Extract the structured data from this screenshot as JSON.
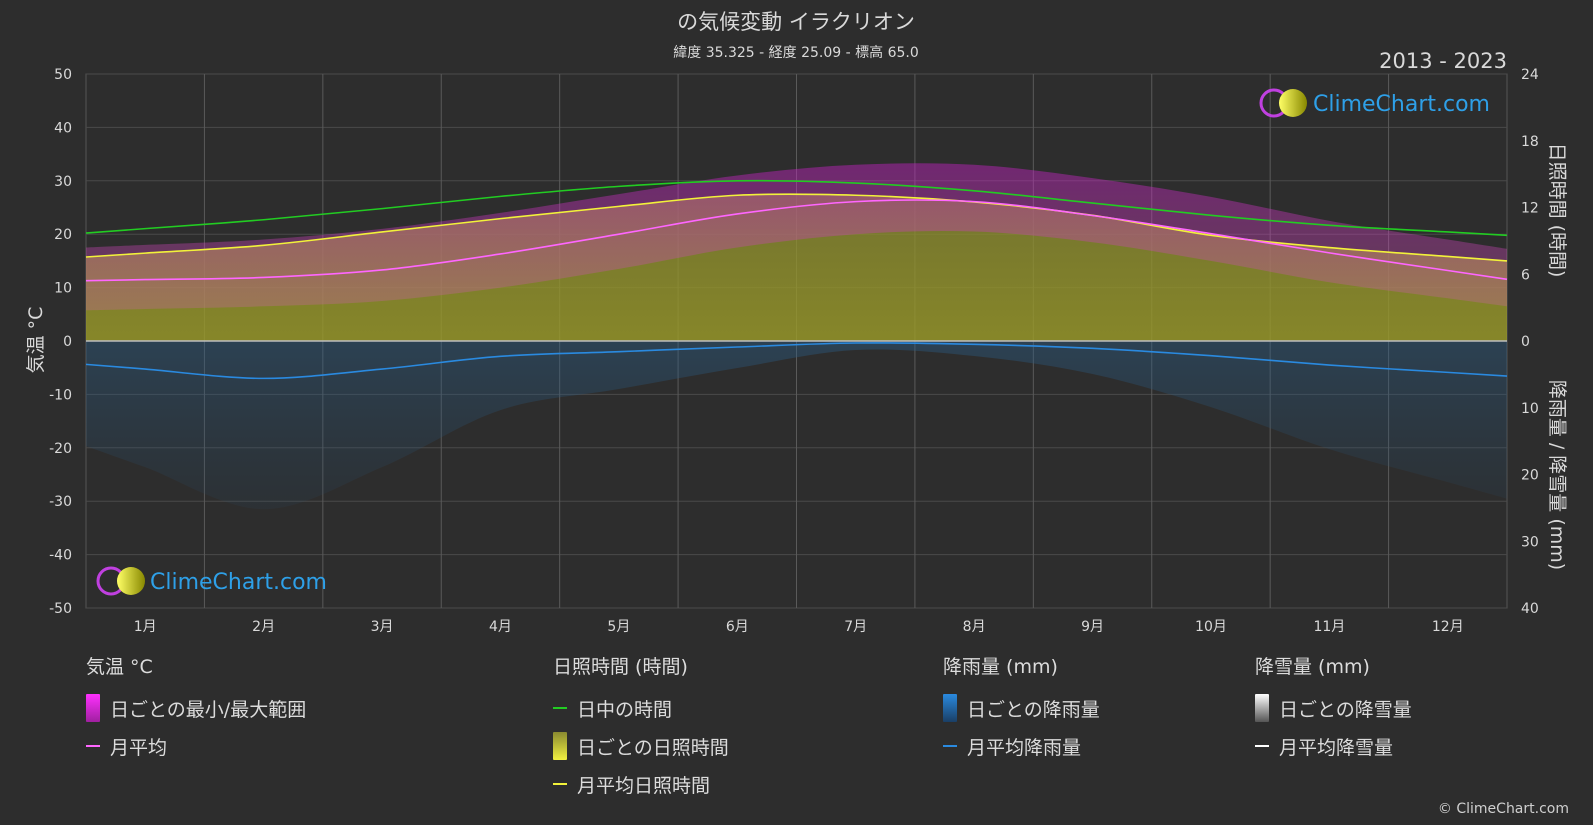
{
  "title": "の気候変動 イラクリオン",
  "subtitle": "緯度 35.325 - 経度 25.09 - 標高 65.0",
  "period": "2013 - 2023",
  "logo_text": "ClimeChart.com",
  "copyright": "© ClimeChart.com",
  "colors": {
    "background": "#2d2d2d",
    "temp_range": "#d62ad6",
    "temp_avg": "#ff66ff",
    "daylight": "#22cc22",
    "sunshine_fill": "#9a9a2a",
    "sunshine_avg": "#f2f23a",
    "rain": "#2a7fd4",
    "rain_avg": "#2a8ae0",
    "snow_avg": "#ffffff"
  },
  "chart_data": {
    "type": "line",
    "months": [
      "1月",
      "2月",
      "3月",
      "4月",
      "5月",
      "6月",
      "7月",
      "8月",
      "9月",
      "10月",
      "11月",
      "12月"
    ],
    "axes": {
      "left": {
        "label": "気温 °C",
        "range": [
          -50,
          50
        ],
        "ticks": [
          50,
          40,
          30,
          20,
          10,
          0,
          -10,
          -20,
          -30,
          -40,
          -50
        ]
      },
      "right_top": {
        "label": "日照時間 (時間)",
        "range": [
          0,
          24
        ],
        "ticks": [
          24,
          18,
          12,
          6,
          0
        ]
      },
      "right_bottom": {
        "label": "降雨量 / 降雪量 (mm)",
        "range": [
          0,
          40
        ],
        "ticks": [
          10,
          20,
          30,
          40
        ]
      }
    },
    "series": [
      {
        "name": "日中の時間",
        "unit": "hours",
        "values": [
          10.1,
          10.9,
          11.9,
          13.0,
          13.9,
          14.4,
          14.2,
          13.5,
          12.4,
          11.3,
          10.4,
          9.8
        ]
      },
      {
        "name": "月平均日照時間",
        "unit": "hours",
        "values": [
          7.9,
          8.6,
          9.8,
          11.0,
          12.1,
          13.1,
          13.1,
          12.5,
          11.3,
          9.5,
          8.4,
          7.6
        ]
      },
      {
        "name": "月平均",
        "unit": "°C",
        "values": [
          11.5,
          11.9,
          13.3,
          16.3,
          20.0,
          23.8,
          26.1,
          26.1,
          23.5,
          20.1,
          16.5,
          13.2
        ]
      },
      {
        "name": "日ごとの最小/最大範囲",
        "unit": "°C",
        "min": [
          6.0,
          6.5,
          7.5,
          10.0,
          13.5,
          17.5,
          20.0,
          20.5,
          18.5,
          15.0,
          11.0,
          8.0
        ],
        "max": [
          18.0,
          19.0,
          21.0,
          24.0,
          27.5,
          31.0,
          33.0,
          33.0,
          30.5,
          27.0,
          22.5,
          19.0
        ]
      },
      {
        "name": "月平均降雨量",
        "unit": "mm",
        "values": [
          4.2,
          5.6,
          4.2,
          2.3,
          1.6,
          0.9,
          0.3,
          0.5,
          1.1,
          2.2,
          3.6,
          4.7
        ]
      },
      {
        "name": "月平均降雪量",
        "unit": "mm",
        "values": [
          0,
          0,
          0,
          0,
          0,
          0,
          0,
          0,
          0,
          0,
          0,
          0
        ]
      }
    ]
  },
  "legend": {
    "groups": [
      {
        "title": "気温 °C",
        "items": [
          {
            "label": "日ごとの最小/最大範囲",
            "swatch": "bar",
            "color": "#e040e0"
          },
          {
            "label": "月平均",
            "swatch": "line",
            "color": "#ff66ff"
          }
        ]
      },
      {
        "title": "日照時間 (時間)",
        "items": [
          {
            "label": "日中の時間",
            "swatch": "line",
            "color": "#22cc22"
          },
          {
            "label": "日ごとの日照時間",
            "swatch": "bar",
            "color": "#d6d63a"
          },
          {
            "label": "月平均日照時間",
            "swatch": "line",
            "color": "#f2f23a"
          }
        ]
      },
      {
        "title": "降雨量 (mm)",
        "items": [
          {
            "label": "日ごとの降雨量",
            "swatch": "bar",
            "color": "#2a7fd4"
          },
          {
            "label": "月平均降雨量",
            "swatch": "line",
            "color": "#2a8ae0"
          }
        ]
      },
      {
        "title": "降雪量 (mm)",
        "items": [
          {
            "label": "日ごとの降雪量",
            "swatch": "bar",
            "color": "#ffffff"
          },
          {
            "label": "月平均降雪量",
            "swatch": "line",
            "color": "#ffffff"
          }
        ]
      }
    ]
  }
}
